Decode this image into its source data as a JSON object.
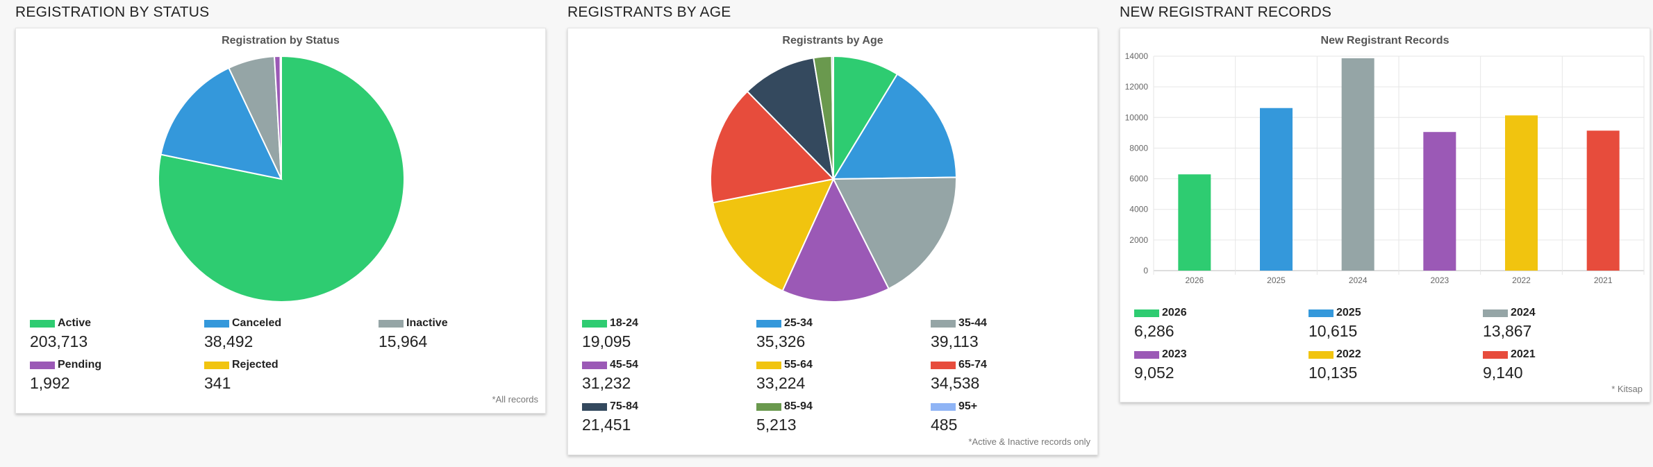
{
  "panels": [
    {
      "heading": "REGISTRATION BY STATUS",
      "footnote": "*All records",
      "chart_title": "Registration by Status",
      "legend": [
        {
          "label": "Active",
          "value": "203,713",
          "color": "#2ecc71"
        },
        {
          "label": "Canceled",
          "value": "38,492",
          "color": "#3498db"
        },
        {
          "label": "Inactive",
          "value": "15,964",
          "color": "#95a5a6"
        },
        {
          "label": "Pending",
          "value": "1,992",
          "color": "#9b59b6"
        },
        {
          "label": "Rejected",
          "value": "341",
          "color": "#f1c40f"
        }
      ]
    },
    {
      "heading": "REGISTRANTS BY AGE",
      "footnote": "*Active & Inactive records only",
      "chart_title": "Registrants by Age",
      "legend": [
        {
          "label": "18-24",
          "value": "19,095",
          "color": "#2ecc71"
        },
        {
          "label": "25-34",
          "value": "35,326",
          "color": "#3498db"
        },
        {
          "label": "35-44",
          "value": "39,113",
          "color": "#95a5a6"
        },
        {
          "label": "45-54",
          "value": "31,232",
          "color": "#9b59b6"
        },
        {
          "label": "55-64",
          "value": "33,224",
          "color": "#f1c40f"
        },
        {
          "label": "65-74",
          "value": "34,538",
          "color": "#e74c3c"
        },
        {
          "label": "75-84",
          "value": "21,451",
          "color": "#34495e"
        },
        {
          "label": "85-94",
          "value": "5,213",
          "color": "#6a994e"
        },
        {
          "label": "95+",
          "value": "485",
          "color": "#8fb4f5"
        }
      ]
    },
    {
      "heading": "NEW REGISTRANT RECORDS",
      "footnote": "* Kitsap",
      "chart_title": "New Registrant Records",
      "legend": [
        {
          "label": "2026",
          "value": "6,286",
          "color": "#2ecc71"
        },
        {
          "label": "2025",
          "value": "10,615",
          "color": "#3498db"
        },
        {
          "label": "2024",
          "value": "13,867",
          "color": "#95a5a6"
        },
        {
          "label": "2023",
          "value": "9,052",
          "color": "#9b59b6"
        },
        {
          "label": "2022",
          "value": "10,135",
          "color": "#f1c40f"
        },
        {
          "label": "2021",
          "value": "9,140",
          "color": "#e74c3c"
        }
      ]
    }
  ],
  "chart_data": [
    {
      "type": "pie",
      "title": "Registration by Status",
      "categories": [
        "Active",
        "Canceled",
        "Inactive",
        "Pending",
        "Rejected"
      ],
      "values": [
        203713,
        38492,
        15964,
        1992,
        341
      ],
      "colors": [
        "#2ecc71",
        "#3498db",
        "#95a5a6",
        "#9b59b6",
        "#f1c40f"
      ],
      "legend": "bottom"
    },
    {
      "type": "pie",
      "title": "Registrants by Age",
      "categories": [
        "18-24",
        "25-34",
        "35-44",
        "45-54",
        "55-64",
        "65-74",
        "75-84",
        "85-94",
        "95+"
      ],
      "values": [
        19095,
        35326,
        39113,
        31232,
        33224,
        34538,
        21451,
        5213,
        485
      ],
      "colors": [
        "#2ecc71",
        "#3498db",
        "#95a5a6",
        "#9b59b6",
        "#f1c40f",
        "#e74c3c",
        "#34495e",
        "#6a994e",
        "#8fb4f5"
      ],
      "legend": "bottom"
    },
    {
      "type": "bar",
      "title": "New Registrant Records",
      "categories": [
        "2026",
        "2025",
        "2024",
        "2023",
        "2022",
        "2021"
      ],
      "values": [
        6286,
        10615,
        13867,
        9052,
        10135,
        9140
      ],
      "colors": [
        "#2ecc71",
        "#3498db",
        "#95a5a6",
        "#9b59b6",
        "#f1c40f",
        "#e74c3c"
      ],
      "ylim": [
        0,
        14000
      ],
      "yticks": [
        0,
        2000,
        4000,
        6000,
        8000,
        10000,
        12000,
        14000
      ],
      "grid": true,
      "legend": "bottom"
    }
  ]
}
